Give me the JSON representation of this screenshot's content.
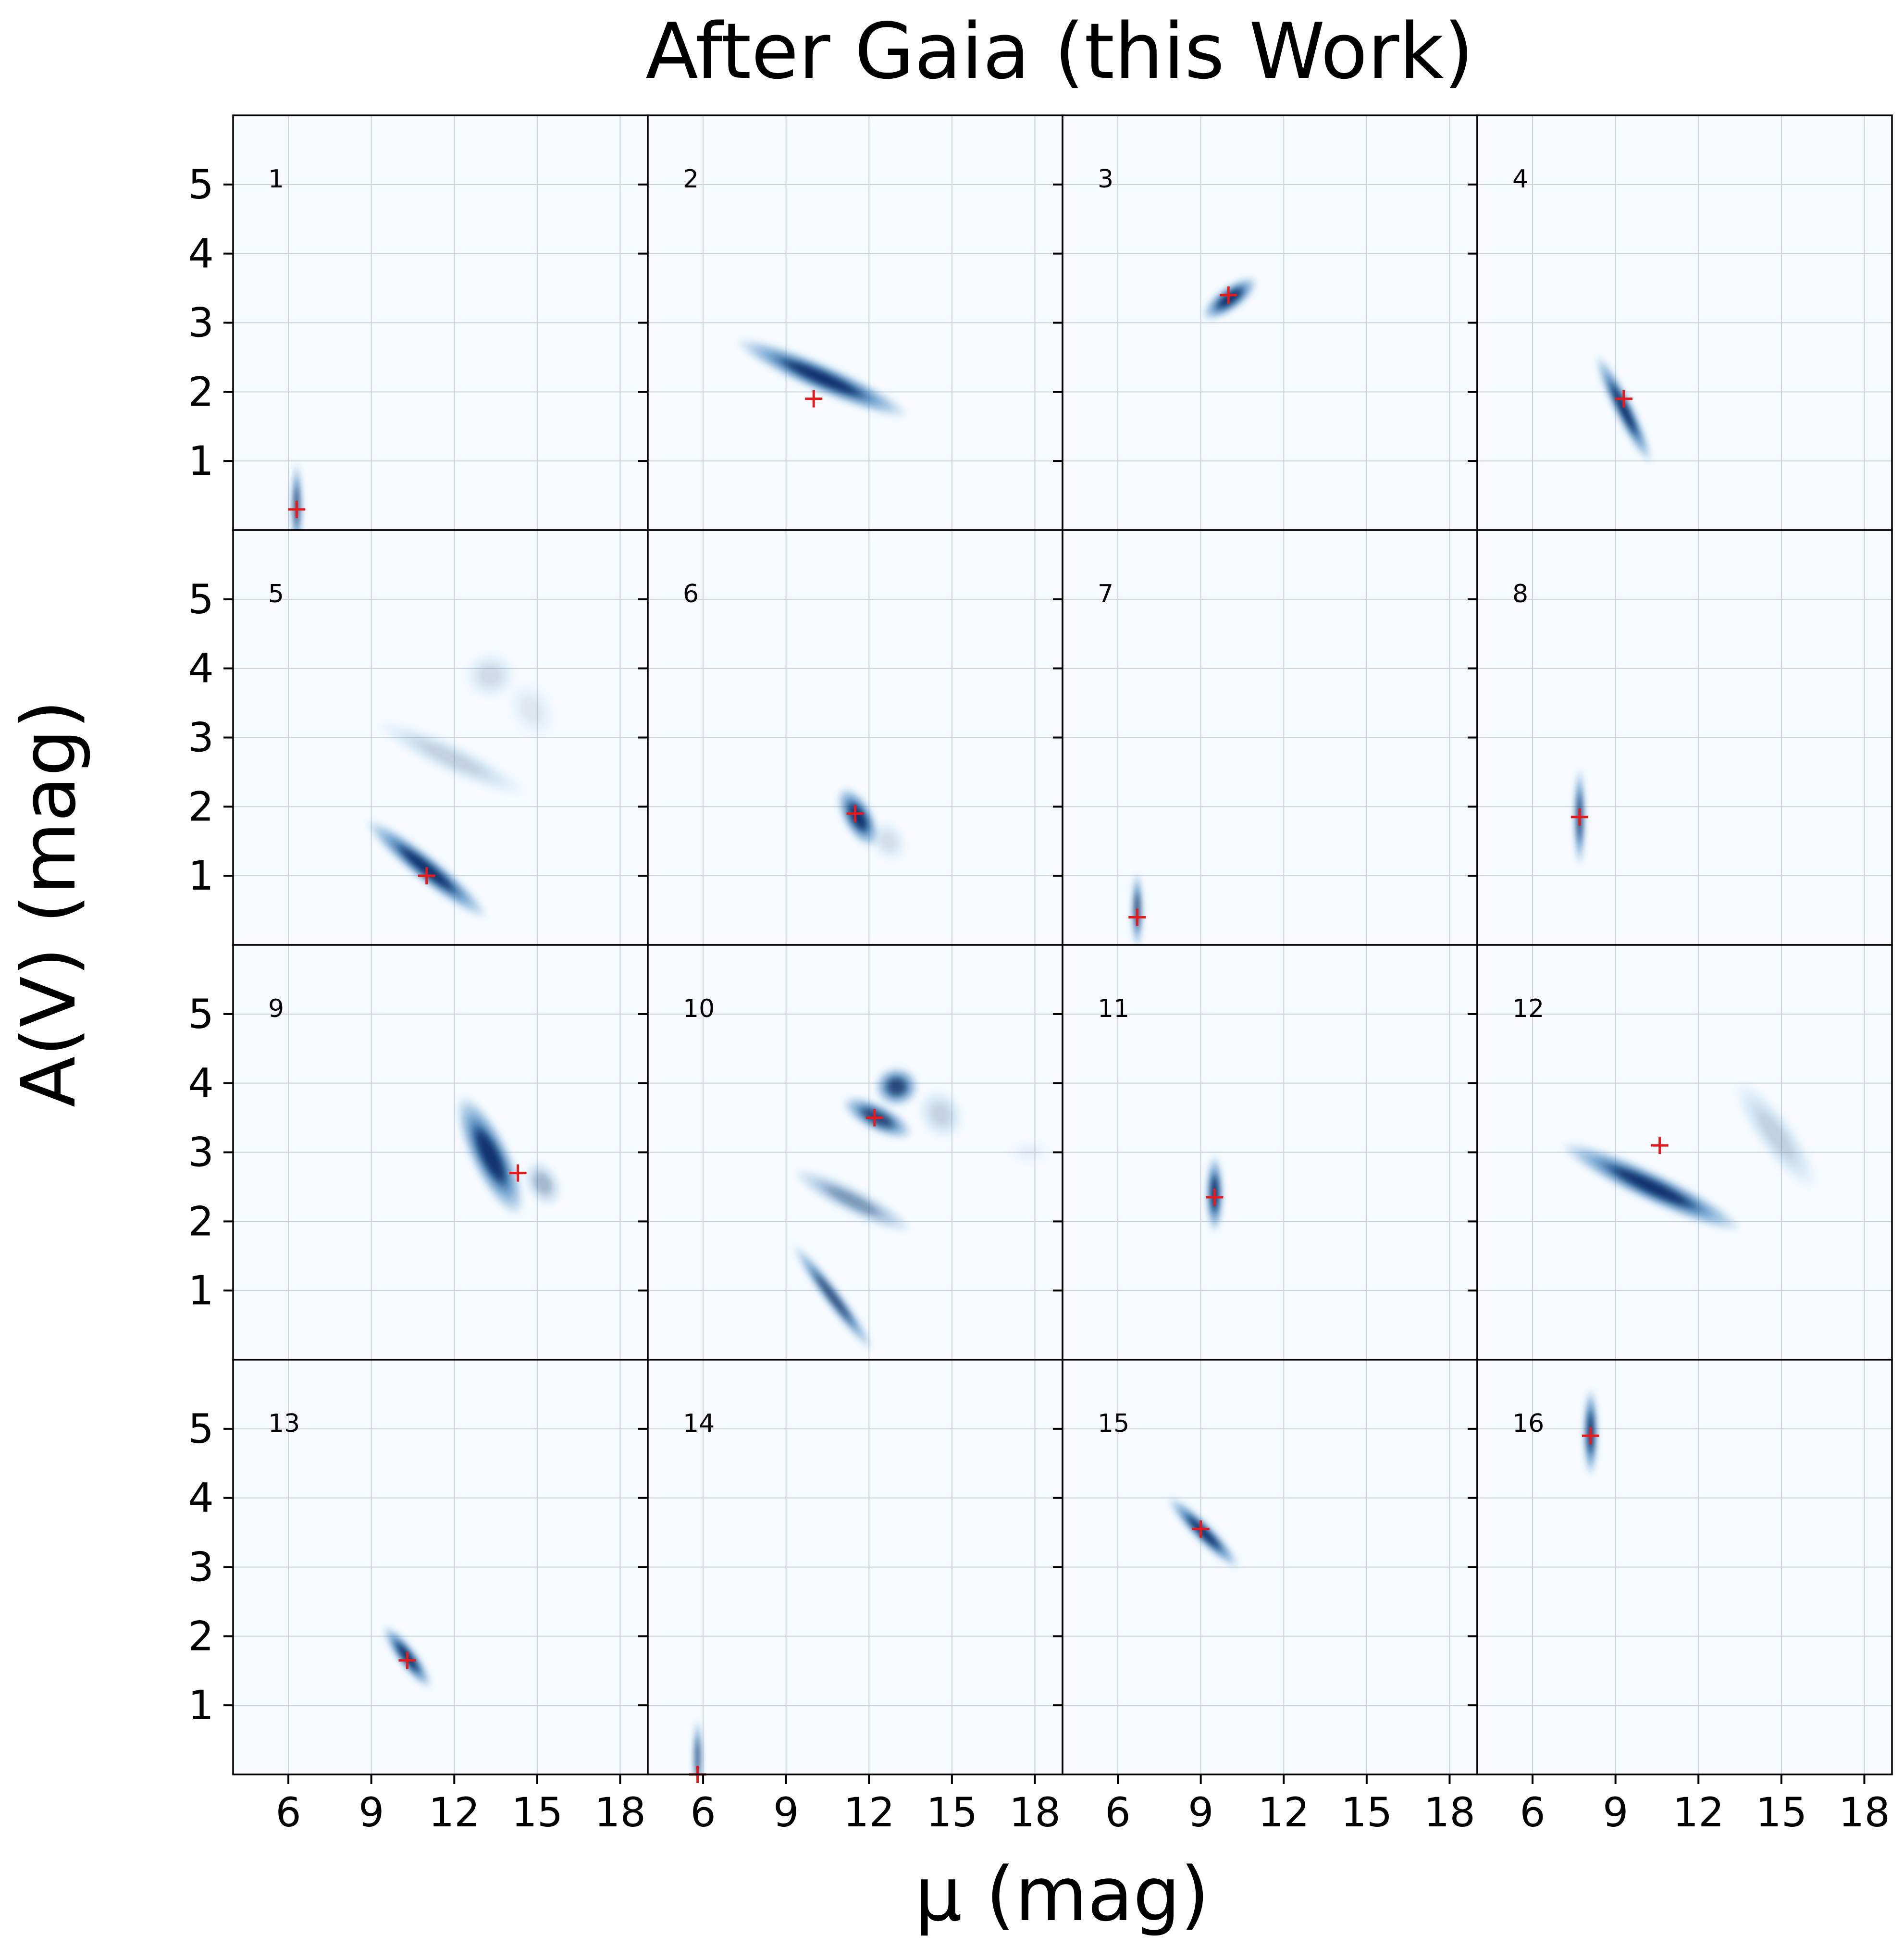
{
  "figure": {
    "title": "After Gaia (this Work)",
    "xlabel": "μ (mag)",
    "ylabel": "A(V) (mag)"
  },
  "colors": {
    "background": "#f7fbff",
    "density_dark": "#08306b",
    "density_mid": "#2171b5",
    "marker": "#e41a1c",
    "grid": "#c9d3dd"
  },
  "chart_data": {
    "type": "heatmap",
    "layout": "4x4 grid of panels sharing axes",
    "xlim": [
      4,
      19
    ],
    "ylim": [
      0,
      6
    ],
    "xticks": [
      6,
      9,
      12,
      15,
      18
    ],
    "yticks": [
      1,
      2,
      3,
      4,
      5
    ],
    "grid": true,
    "colormap": "Blues",
    "marker": "red plus (best-fit value)",
    "panels": [
      {
        "id": "1",
        "best": [
          6.3,
          0.3
        ],
        "blobs": [
          {
            "c": [
              6.3,
              0.35
            ],
            "sx": 0.13,
            "sy": 0.4,
            "r": 0,
            "w": 0.85
          }
        ]
      },
      {
        "id": "2",
        "best": [
          10.0,
          1.9
        ],
        "blobs": [
          {
            "c": [
              10.3,
              2.2
            ],
            "sx": 0.33,
            "sy": 0.85,
            "r": -0.92,
            "w": 1.0
          }
        ]
      },
      {
        "id": "3",
        "best": [
          10.0,
          3.4
        ],
        "blobs": [
          {
            "c": [
              10.05,
              3.35
            ],
            "sx": 0.28,
            "sy": 0.3,
            "r": 0.55,
            "w": 1.0
          }
        ]
      },
      {
        "id": "4",
        "best": [
          9.3,
          1.9
        ],
        "blobs": [
          {
            "c": [
              9.3,
              1.75
            ],
            "sx": 0.22,
            "sy": 0.55,
            "r": -0.2,
            "w": 1.0
          }
        ]
      },
      {
        "id": "5",
        "best": [
          11.0,
          1.0
        ],
        "blobs": [
          {
            "c": [
              11.0,
              1.1
            ],
            "sx": 0.3,
            "sy": 0.7,
            "r": -0.5,
            "w": 1.0
          },
          {
            "c": [
              11.9,
              2.7
            ],
            "sx": 0.35,
            "sy": 0.75,
            "r": -0.85,
            "w": 0.22
          },
          {
            "c": [
              13.3,
              3.9
            ],
            "sx": 0.6,
            "sy": 0.22,
            "r": 0,
            "w": 0.16
          },
          {
            "c": [
              14.8,
              3.4
            ],
            "sx": 0.7,
            "sy": 0.2,
            "r": 0.7,
            "w": 0.1
          }
        ]
      },
      {
        "id": "6",
        "best": [
          11.5,
          1.9
        ],
        "blobs": [
          {
            "c": [
              11.6,
              1.85
            ],
            "sx": 0.35,
            "sy": 0.3,
            "r": 0.72,
            "w": 1.0
          },
          {
            "c": [
              12.7,
              1.5
            ],
            "sx": 0.4,
            "sy": 0.2,
            "r": 0.7,
            "w": 0.15
          }
        ]
      },
      {
        "id": "7",
        "best": [
          6.7,
          0.4
        ],
        "blobs": [
          {
            "c": [
              6.7,
              0.5
            ],
            "sx": 0.13,
            "sy": 0.35,
            "r": 0,
            "w": 0.9
          }
        ]
      },
      {
        "id": "8",
        "best": [
          7.7,
          1.85
        ],
        "blobs": [
          {
            "c": [
              7.7,
              1.85
            ],
            "sx": 0.13,
            "sy": 0.45,
            "r": 0,
            "w": 0.95
          }
        ]
      },
      {
        "id": "9",
        "best": [
          14.3,
          2.7
        ],
        "blobs": [
          {
            "c": [
              13.3,
              2.95
            ],
            "sx": 1.5,
            "sy": 0.18,
            "r": 0.82,
            "w": 1.0
          },
          {
            "c": [
              15.2,
              2.55
            ],
            "sx": 0.55,
            "sy": 0.15,
            "r": 0.7,
            "w": 0.35
          }
        ]
      },
      {
        "id": "10",
        "best": [
          12.2,
          3.5
        ],
        "blobs": [
          {
            "c": [
              10.7,
              0.9
            ],
            "sx": 0.2,
            "sy": 0.6,
            "r": -0.3,
            "w": 0.85
          },
          {
            "c": [
              11.4,
              2.3
            ],
            "sx": 0.3,
            "sy": 0.6,
            "r": -0.8,
            "w": 0.5
          },
          {
            "c": [
              12.3,
              3.5
            ],
            "sx": 0.32,
            "sy": 0.35,
            "r": -0.8,
            "w": 0.9
          },
          {
            "c": [
              13.0,
              3.95
            ],
            "sx": 0.45,
            "sy": 0.2,
            "r": 0,
            "w": 0.9
          },
          {
            "c": [
              14.6,
              3.55
            ],
            "sx": 0.6,
            "sy": 0.2,
            "r": 0.6,
            "w": 0.2
          },
          {
            "c": [
              17.8,
              3.0
            ],
            "sx": 0.3,
            "sy": 0.2,
            "r": 0,
            "w": 0.06
          }
        ]
      },
      {
        "id": "11",
        "best": [
          9.5,
          2.35
        ],
        "blobs": [
          {
            "c": [
              9.5,
              2.4
            ],
            "sx": 0.2,
            "sy": 0.35,
            "r": 0,
            "w": 1.0
          }
        ]
      },
      {
        "id": "12",
        "best": [
          10.6,
          3.1
        ],
        "blobs": [
          {
            "c": [
              10.3,
              2.5
            ],
            "sx": 0.35,
            "sy": 0.9,
            "r": -0.85,
            "w": 1.0
          },
          {
            "c": [
              14.8,
              3.25
            ],
            "sx": 1.5,
            "sy": 0.17,
            "r": 0.55,
            "w": 0.22
          }
        ]
      },
      {
        "id": "13",
        "best": [
          10.3,
          1.65
        ],
        "blobs": [
          {
            "c": [
              10.3,
              1.7
            ],
            "sx": 0.22,
            "sy": 0.35,
            "r": -0.3,
            "w": 1.0
          }
        ]
      },
      {
        "id": "14",
        "best": [
          5.8,
          0.0
        ],
        "blobs": [
          {
            "c": [
              5.8,
              0.25
            ],
            "sx": 0.1,
            "sy": 0.35,
            "r": 0,
            "w": 0.9
          }
        ]
      },
      {
        "id": "15",
        "best": [
          9.0,
          3.55
        ],
        "blobs": [
          {
            "c": [
              9.1,
              3.5
            ],
            "sx": 0.22,
            "sy": 0.45,
            "r": -0.4,
            "w": 1.0
          }
        ]
      },
      {
        "id": "16",
        "best": [
          8.1,
          4.9
        ],
        "blobs": [
          {
            "c": [
              8.1,
              4.95
            ],
            "sx": 0.17,
            "sy": 0.4,
            "r": 0,
            "w": 1.0
          }
        ]
      }
    ]
  }
}
